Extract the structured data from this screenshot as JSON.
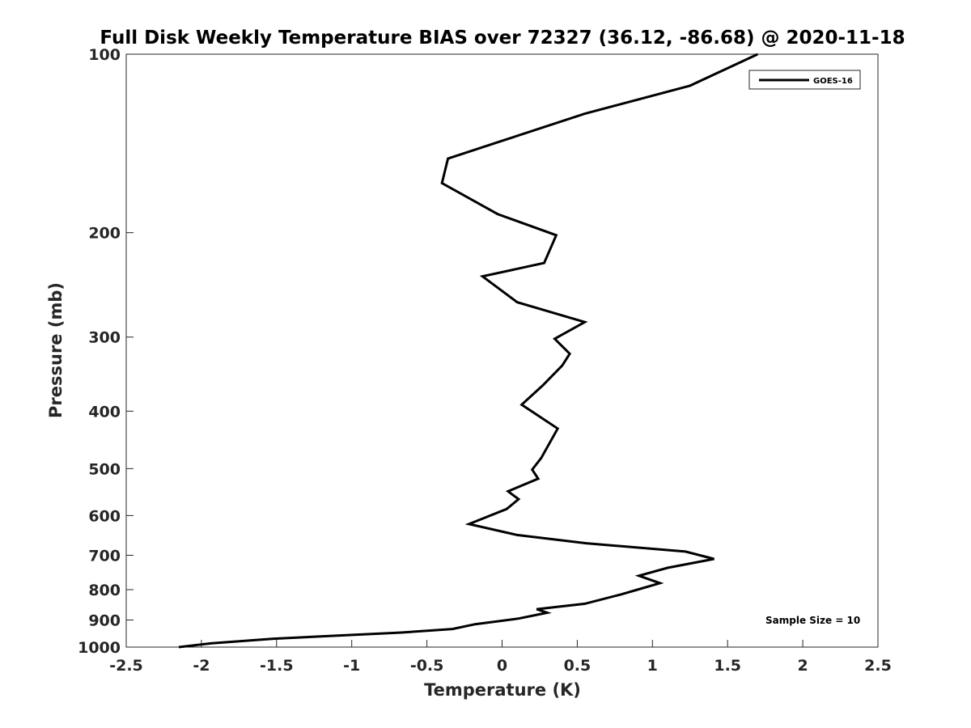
{
  "chart_data": {
    "type": "line",
    "title": "Full Disk Weekly Temperature BIAS over 72327 (36.12, -86.68) @ 2020-11-18",
    "xlabel": "Temperature (K)",
    "ylabel": "Pressure (mb)",
    "xlim": [
      -2.5,
      2.5
    ],
    "ylim": [
      100,
      1000
    ],
    "y_scale": "log",
    "y_reversed": true,
    "x_ticks": [
      -2.5,
      -2,
      -1.5,
      -1,
      -0.5,
      0,
      0.5,
      1,
      1.5,
      2,
      2.5
    ],
    "x_tick_labels": [
      "-2.5",
      "-2",
      "-1.5",
      "-1",
      "-0.5",
      "0",
      "0.5",
      "1",
      "1.5",
      "2",
      "2.5"
    ],
    "y_ticks": [
      100,
      200,
      300,
      400,
      500,
      600,
      700,
      800,
      900,
      1000
    ],
    "y_tick_labels": [
      "100",
      "200",
      "300",
      "400",
      "500",
      "600",
      "700",
      "800",
      "900",
      "1000"
    ],
    "grid": false,
    "legend": {
      "position": "top-right",
      "entries": [
        "GOES-16"
      ]
    },
    "annotations": [
      "Sample Size = 10"
    ],
    "series": [
      {
        "name": "GOES-16",
        "color": "#000000",
        "points": [
          [
            1.7,
            100
          ],
          [
            1.25,
            113
          ],
          [
            0.55,
            126
          ],
          [
            0.0,
            140
          ],
          [
            -0.36,
            150
          ],
          [
            -0.4,
            165
          ],
          [
            -0.03,
            186
          ],
          [
            0.36,
            202
          ],
          [
            0.28,
            225
          ],
          [
            -0.13,
            237
          ],
          [
            0.1,
            262
          ],
          [
            0.55,
            283
          ],
          [
            0.35,
            302
          ],
          [
            0.45,
            320
          ],
          [
            0.4,
            335
          ],
          [
            0.27,
            362
          ],
          [
            0.13,
            390
          ],
          [
            0.37,
            428
          ],
          [
            0.26,
            480
          ],
          [
            0.2,
            502
          ],
          [
            0.24,
            520
          ],
          [
            0.04,
            546
          ],
          [
            0.11,
            563
          ],
          [
            0.03,
            585
          ],
          [
            -0.22,
            620
          ],
          [
            0.1,
            647
          ],
          [
            0.56,
            668
          ],
          [
            1.22,
            690
          ],
          [
            1.41,
            710
          ],
          [
            1.1,
            735
          ],
          [
            0.91,
            758
          ],
          [
            1.05,
            780
          ],
          [
            0.9,
            800
          ],
          [
            0.79,
            815
          ],
          [
            0.55,
            845
          ],
          [
            0.23,
            863
          ],
          [
            0.3,
            875
          ],
          [
            0.11,
            895
          ],
          [
            -0.18,
            915
          ],
          [
            -0.33,
            932
          ],
          [
            -0.67,
            945
          ],
          [
            -1.52,
            968
          ],
          [
            -1.93,
            985
          ],
          [
            -2.15,
            1000
          ]
        ]
      }
    ]
  }
}
